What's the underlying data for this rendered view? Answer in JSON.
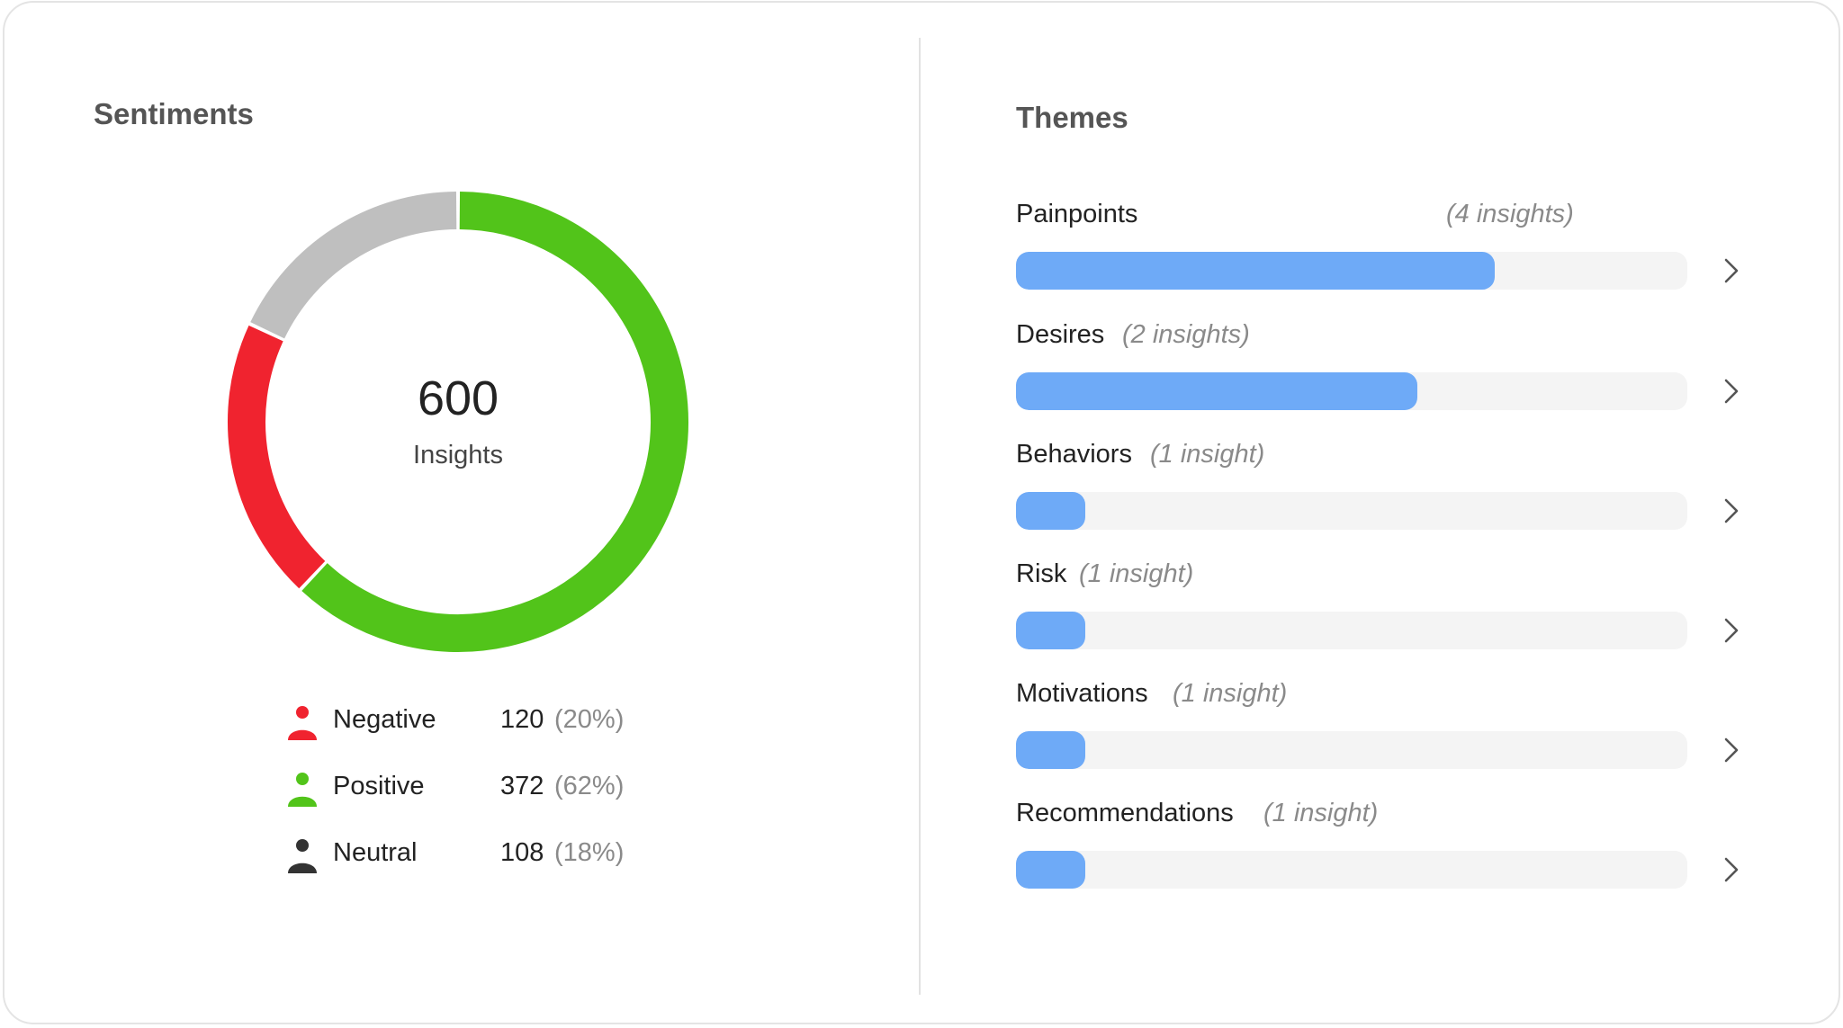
{
  "sentiments": {
    "title": "Sentiments",
    "total": "600",
    "total_label": "Insights",
    "colors": {
      "negative": "#f0232f",
      "positive": "#52c41a",
      "neutral": "#bfbfbf",
      "neutral_icon": "#333333"
    },
    "items": [
      {
        "label": "Negative",
        "count": "120",
        "percent": "(20%)",
        "value": 120,
        "color": "#f0232f",
        "icon": "person-icon"
      },
      {
        "label": "Positive",
        "count": "372",
        "percent": "(62%)",
        "value": 372,
        "color": "#52c41a",
        "icon": "person-icon"
      },
      {
        "label": "Neutral",
        "count": "108",
        "percent": "(18%)",
        "value": 108,
        "color": "#333333",
        "icon": "person-icon"
      }
    ]
  },
  "themes": {
    "title": "Themes",
    "bar_color": "#6eaaf7",
    "items": [
      {
        "name": "Painpoints",
        "count": "(4 insights)",
        "fill_fraction": 0.713
      },
      {
        "name": "Desires",
        "count": "(2 insights)",
        "fill_fraction": 0.598
      },
      {
        "name": "Behaviors",
        "count": "(1 insight)",
        "fill_fraction": 0.103
      },
      {
        "name": "Risk",
        "count": "(1 insight)",
        "fill_fraction": 0.103
      },
      {
        "name": "Motivations",
        "count": "(1 insight)",
        "fill_fraction": 0.103
      },
      {
        "name": "Recommendations",
        "count": "(1 insight)",
        "fill_fraction": 0.103
      }
    ]
  }
}
